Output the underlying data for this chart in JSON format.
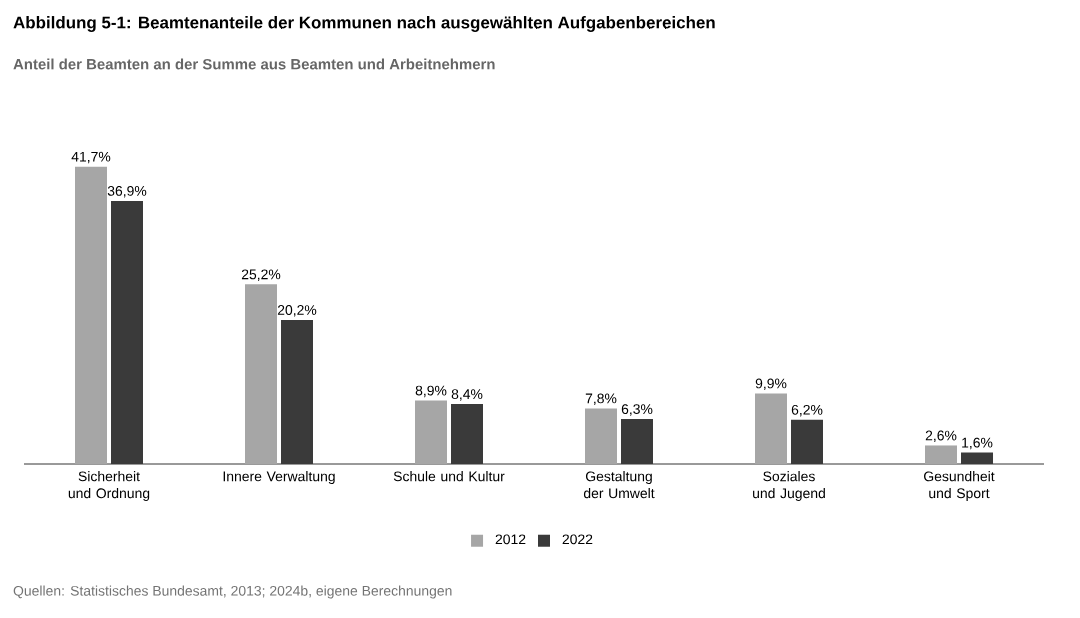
{
  "chart_data": {
    "type": "bar",
    "title": "Abbildung 5-1: Beamtenanteile der Kommunen nach ausgewählten Aufgabenbereichen",
    "subtitle": "Anteil der Beamten an der Summe aus Beamten und Arbeitnehmern",
    "categories": [
      "Sicherheit und Ordnung",
      "Innere Verwaltung",
      "Schule und Kultur",
      "Gestaltung der Umwelt",
      "Soziales und Jugend",
      "Gesundheit und Sport"
    ],
    "series": [
      {
        "name": "2012",
        "color": "#a6a6a6",
        "values": [
          41.7,
          25.2,
          8.9,
          7.8,
          9.9,
          2.6
        ],
        "value_labels": [
          "41,7%",
          "25,2%",
          "8,9%",
          "7,8%",
          "9,9%",
          "2,6%"
        ]
      },
      {
        "name": "2022",
        "color": "#3a3a3a",
        "values": [
          36.9,
          20.2,
          8.4,
          6.3,
          6.2,
          1.6
        ],
        "value_labels": [
          "36,9%",
          "20,2%",
          "8,4%",
          "6,3%",
          "6,2%",
          "1,6%"
        ]
      }
    ],
    "legend": "bottom",
    "annotations": [
      "Quellen: Statistisches Bundesamt, 2013; 2024b, eigene Berechnungen"
    ]
  }
}
